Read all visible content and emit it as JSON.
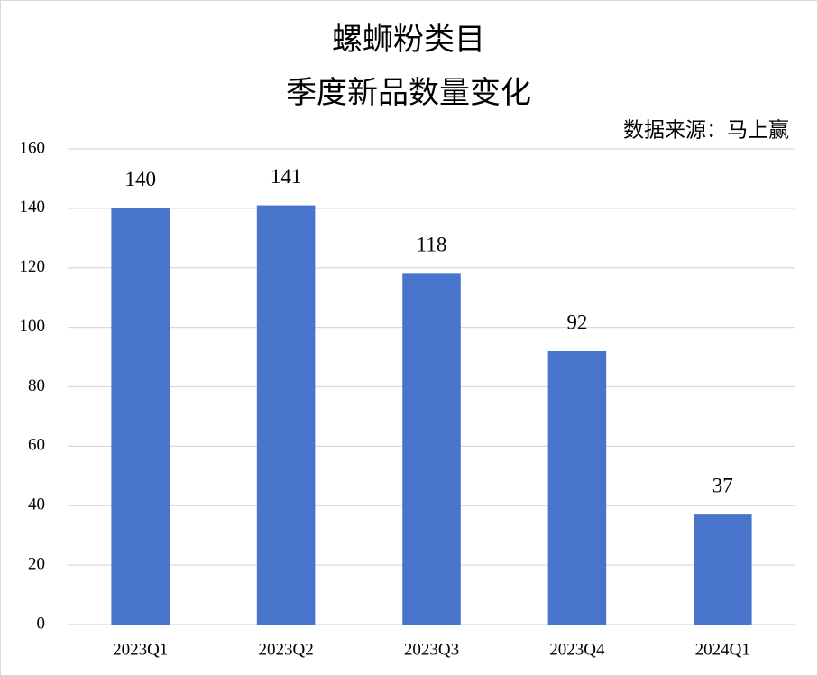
{
  "chart_data": {
    "type": "bar",
    "title": [
      "螺蛳粉类目",
      "季度新品数量变化"
    ],
    "source": "数据来源：马上赢",
    "categories": [
      "2023Q1",
      "2023Q2",
      "2023Q3",
      "2023Q4",
      "2024Q1"
    ],
    "values": [
      140,
      141,
      118,
      92,
      37
    ],
    "color": "#4874cb",
    "ylim": [
      0,
      160
    ],
    "yticks": [
      0,
      20,
      40,
      60,
      80,
      100,
      120,
      140,
      160
    ],
    "grid": true
  }
}
